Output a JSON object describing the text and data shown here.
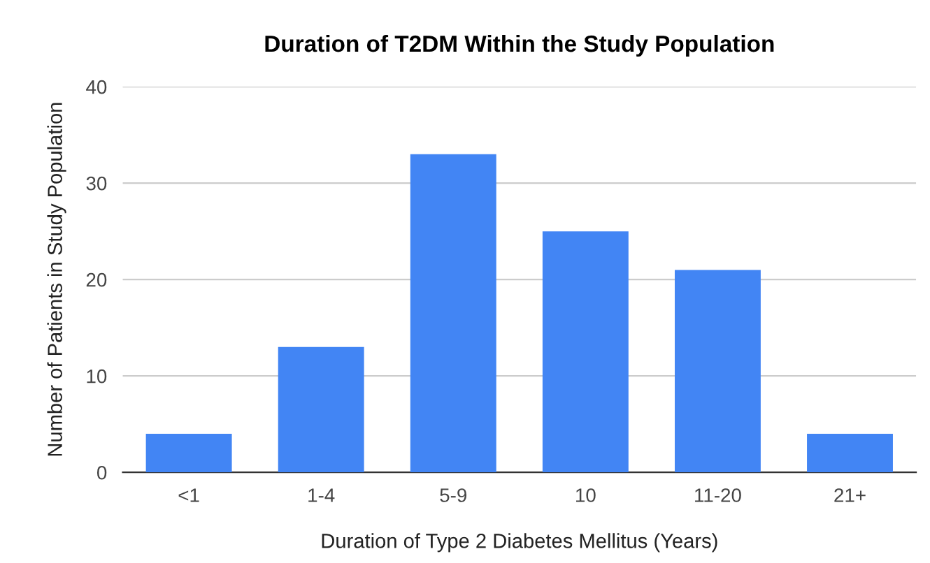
{
  "chart_data": {
    "type": "bar",
    "title": "Duration of T2DM Within the Study Population",
    "xlabel": "Duration of Type 2 Diabetes Mellitus (Years)",
    "ylabel": "Number of Patients in Study Population",
    "categories": [
      "<1",
      "1-4",
      "5-9",
      "10",
      "11-20",
      "21+"
    ],
    "values": [
      4,
      13,
      33,
      25,
      21,
      4
    ],
    "color": "#4285f4",
    "ylim": [
      0,
      40
    ],
    "yticks": [
      0,
      10,
      20,
      30,
      40
    ],
    "grid": "y"
  }
}
